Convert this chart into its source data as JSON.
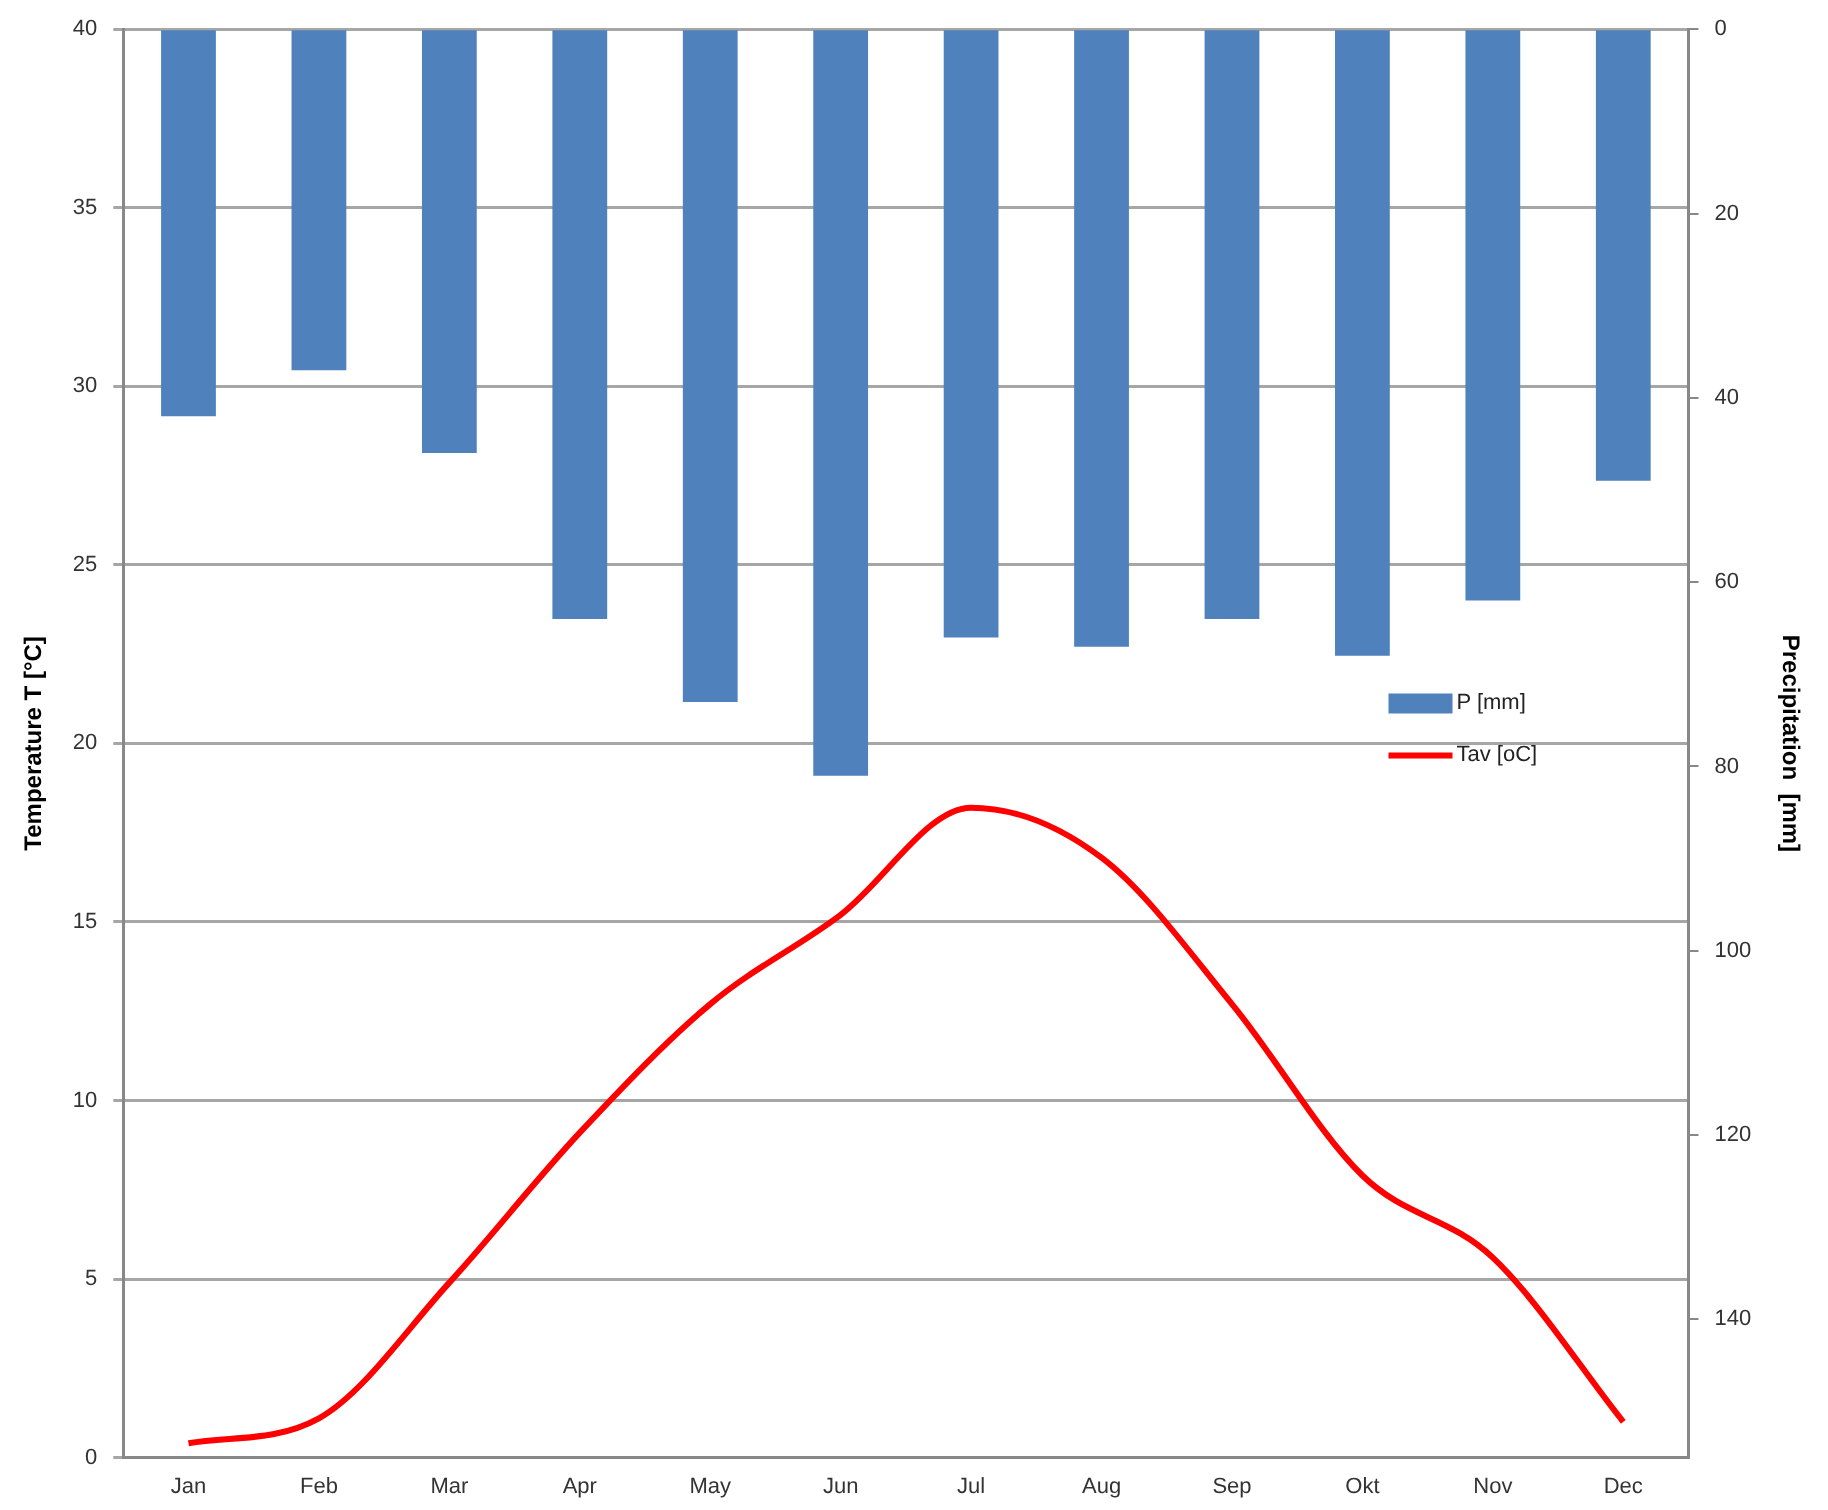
{
  "chart_data": {
    "type": "bar",
    "ylabel": "Temperature T [°C]",
    "y2label": "Precipitation  [mm]",
    "categories": [
      "Jan",
      "Feb",
      "Mar",
      "Apr",
      "May",
      "Jun",
      "Jul",
      "Aug",
      "Sep",
      "Okt",
      "Nov",
      "Dec"
    ],
    "series": [
      {
        "name": "P [mm]",
        "axis": "y2",
        "color": "#4f81bd",
        "values": [
          42,
          37,
          46,
          64,
          73,
          81,
          66,
          67,
          64,
          68,
          62,
          49
        ]
      },
      {
        "name": "Tav [oC]",
        "type": "line",
        "color": "#ff0000",
        "values": [
          0.4,
          1.1,
          4.9,
          9.1,
          12.7,
          15.2,
          18.2,
          16.8,
          12.7,
          7.9,
          5.6,
          1.0
        ]
      }
    ],
    "ylim": [
      0,
      40
    ],
    "yticks": [
      0,
      5,
      10,
      15,
      20,
      25,
      30,
      35,
      40
    ],
    "y2lim": [
      155,
      0
    ],
    "y2ticks": [
      0,
      20,
      40,
      60,
      80,
      100,
      120,
      140
    ],
    "grid": "y",
    "legend": "right",
    "marker": "none"
  }
}
